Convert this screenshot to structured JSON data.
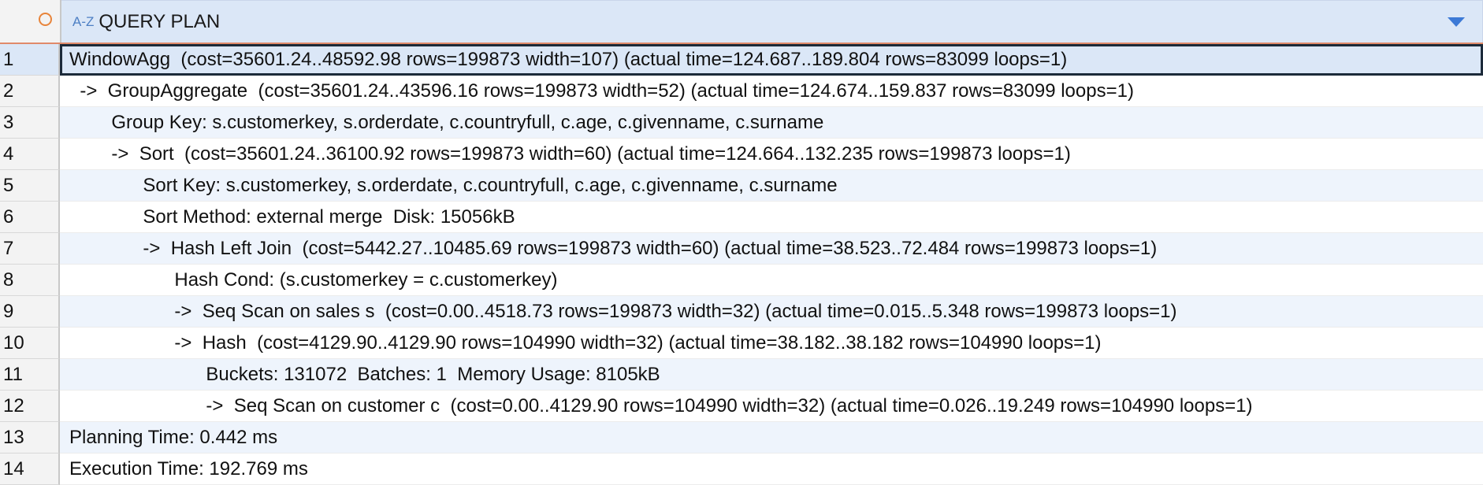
{
  "header": {
    "az_icon": "A-Z",
    "column_title": "QUERY PLAN"
  },
  "rows": [
    {
      "num": "1",
      "text": "WindowAgg  (cost=35601.24..48592.98 rows=199873 width=107) (actual time=124.687..189.804 rows=83099 loops=1)"
    },
    {
      "num": "2",
      "text": "  ->  GroupAggregate  (cost=35601.24..43596.16 rows=199873 width=52) (actual time=124.674..159.837 rows=83099 loops=1)"
    },
    {
      "num": "3",
      "text": "        Group Key: s.customerkey, s.orderdate, c.countryfull, c.age, c.givenname, c.surname"
    },
    {
      "num": "4",
      "text": "        ->  Sort  (cost=35601.24..36100.92 rows=199873 width=60) (actual time=124.664..132.235 rows=199873 loops=1)"
    },
    {
      "num": "5",
      "text": "              Sort Key: s.customerkey, s.orderdate, c.countryfull, c.age, c.givenname, c.surname"
    },
    {
      "num": "6",
      "text": "              Sort Method: external merge  Disk: 15056kB"
    },
    {
      "num": "7",
      "text": "              ->  Hash Left Join  (cost=5442.27..10485.69 rows=199873 width=60) (actual time=38.523..72.484 rows=199873 loops=1)"
    },
    {
      "num": "8",
      "text": "                    Hash Cond: (s.customerkey = c.customerkey)"
    },
    {
      "num": "9",
      "text": "                    ->  Seq Scan on sales s  (cost=0.00..4518.73 rows=199873 width=32) (actual time=0.015..5.348 rows=199873 loops=1)"
    },
    {
      "num": "10",
      "text": "                    ->  Hash  (cost=4129.90..4129.90 rows=104990 width=32) (actual time=38.182..38.182 rows=104990 loops=1)"
    },
    {
      "num": "11",
      "text": "                          Buckets: 131072  Batches: 1  Memory Usage: 8105kB"
    },
    {
      "num": "12",
      "text": "                          ->  Seq Scan on customer c  (cost=0.00..4129.90 rows=104990 width=32) (actual time=0.026..19.249 rows=104990 loops=1)"
    },
    {
      "num": "13",
      "text": "Planning Time: 0.442 ms"
    },
    {
      "num": "14",
      "text": "Execution Time: 192.769 ms"
    }
  ],
  "selected_row": 1
}
